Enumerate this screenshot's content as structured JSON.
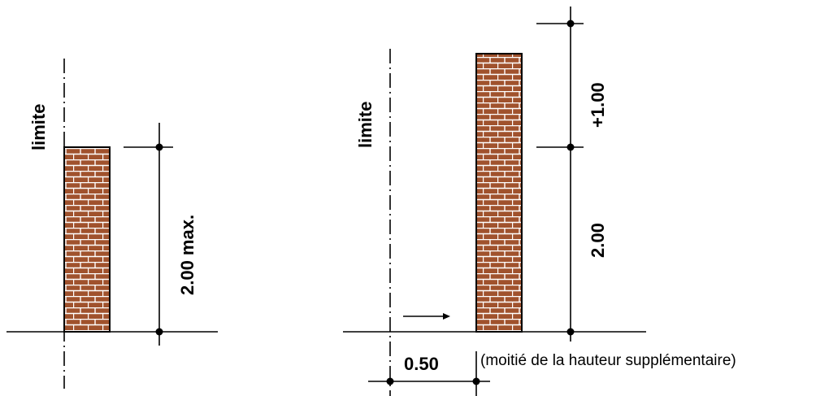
{
  "left_figure": {
    "limit_label": "limite",
    "height_label": "2.00 max."
  },
  "right_figure": {
    "limit_label": "limite",
    "height_label_base": "2.00",
    "height_label_extra": "+1.00",
    "offset_label": "0.50",
    "offset_note": "(moitié de la hauteur supplémentaire)"
  },
  "colors": {
    "brick": "#a0522d",
    "mortar": "#ffffff",
    "outline": "#000000"
  }
}
